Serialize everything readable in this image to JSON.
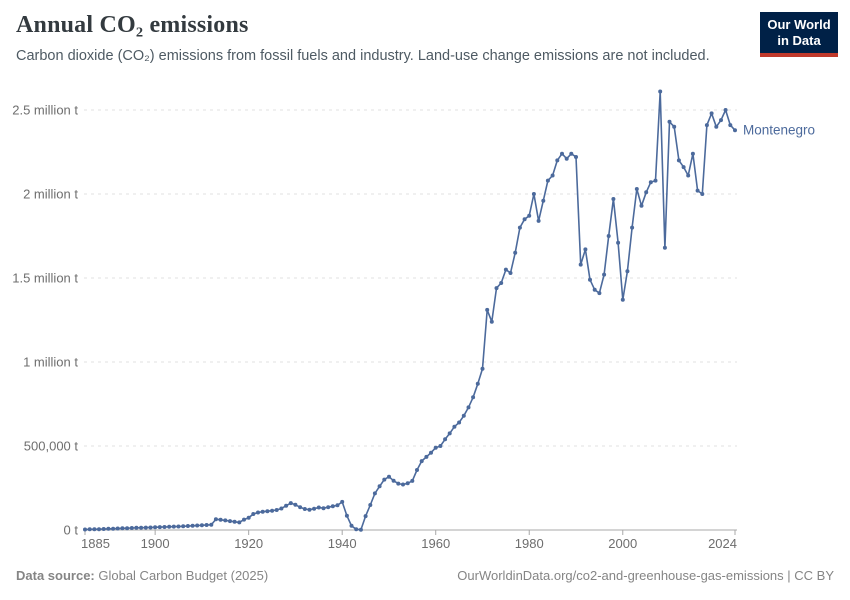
{
  "header": {
    "title": "Annual CO₂ emissions",
    "subtitle": "Carbon dioxide (CO₂) emissions from fossil fuels and industry. Land-use change emissions are not included."
  },
  "logo": {
    "line1": "Our World",
    "line2": "in Data"
  },
  "footer": {
    "datasource_label": "Data source:",
    "datasource_value": " Global Carbon Budget (2025)",
    "link": "OurWorldinData.org/co2-and-greenhouse-gas-emissions | CC BY"
  },
  "chart_data": {
    "type": "line",
    "title": "Annual CO₂ emissions",
    "entity": "Montenegro",
    "unit": "t",
    "line_color": "#4C6A9C",
    "grid": true,
    "legend_position": "end-of-line-label",
    "xlim": [
      1885,
      2024
    ],
    "ylim": [
      0,
      2600000
    ],
    "yticks": [
      {
        "value": 0,
        "label": "0 t"
      },
      {
        "value": 500000,
        "label": "500,000 t"
      },
      {
        "value": 1000000,
        "label": "1 million t"
      },
      {
        "value": 1500000,
        "label": "1.5 million t"
      },
      {
        "value": 2000000,
        "label": "2 million t"
      },
      {
        "value": 2500000,
        "label": "2.5 million t"
      }
    ],
    "xticks": [
      1885,
      1900,
      1920,
      1940,
      1960,
      1980,
      2000,
      2024
    ],
    "years": [
      1885,
      1886,
      1887,
      1888,
      1889,
      1890,
      1891,
      1892,
      1893,
      1894,
      1895,
      1896,
      1897,
      1898,
      1899,
      1900,
      1901,
      1902,
      1903,
      1904,
      1905,
      1906,
      1907,
      1908,
      1909,
      1910,
      1911,
      1912,
      1913,
      1914,
      1915,
      1916,
      1917,
      1918,
      1919,
      1920,
      1921,
      1922,
      1923,
      1924,
      1925,
      1926,
      1927,
      1928,
      1929,
      1930,
      1931,
      1932,
      1933,
      1934,
      1935,
      1936,
      1937,
      1938,
      1939,
      1940,
      1941,
      1942,
      1943,
      1944,
      1945,
      1946,
      1947,
      1948,
      1949,
      1950,
      1951,
      1952,
      1953,
      1954,
      1955,
      1956,
      1957,
      1958,
      1959,
      1960,
      1961,
      1962,
      1963,
      1964,
      1965,
      1966,
      1967,
      1968,
      1969,
      1970,
      1971,
      1972,
      1973,
      1974,
      1975,
      1976,
      1977,
      1978,
      1979,
      1980,
      1981,
      1982,
      1983,
      1984,
      1985,
      1986,
      1987,
      1988,
      1989,
      1990,
      1991,
      1992,
      1993,
      1994,
      1995,
      1996,
      1997,
      1998,
      1999,
      2000,
      2001,
      2002,
      2003,
      2004,
      2005,
      2006,
      2007,
      2008,
      2009,
      2010,
      2011,
      2012,
      2013,
      2014,
      2015,
      2016,
      2017,
      2018,
      2019,
      2020,
      2021,
      2022,
      2023,
      2024
    ],
    "values": [
      3000,
      4000,
      4000,
      5000,
      6000,
      7000,
      8000,
      9000,
      10000,
      11000,
      12000,
      13000,
      13000,
      14000,
      15000,
      16000,
      17000,
      18000,
      19000,
      20000,
      21000,
      22000,
      24000,
      25000,
      27000,
      28000,
      30000,
      31000,
      64000,
      61000,
      57000,
      53000,
      49000,
      45000,
      62000,
      73000,
      95000,
      104000,
      109000,
      112000,
      115000,
      119000,
      128000,
      144000,
      160000,
      150000,
      136000,
      125000,
      121000,
      127000,
      134000,
      130000,
      136000,
      141000,
      147000,
      167000,
      85000,
      25000,
      4000,
      2000,
      83000,
      149000,
      218000,
      260000,
      300000,
      317000,
      293000,
      276000,
      271000,
      278000,
      292000,
      357000,
      410000,
      435000,
      460000,
      490000,
      500000,
      540000,
      575000,
      615000,
      640000,
      680000,
      730000,
      790000,
      870000,
      960000,
      1310000,
      1240000,
      1440000,
      1470000,
      1550000,
      1530000,
      1650000,
      1800000,
      1850000,
      1870000,
      2000000,
      1840000,
      1960000,
      2080000,
      2110000,
      2200000,
      2240000,
      2210000,
      2240000,
      2220000,
      1580000,
      1670000,
      1490000,
      1430000,
      1410000,
      1520000,
      1750000,
      1970000,
      1710000,
      1370000,
      1540000,
      1800000,
      2030000,
      1930000,
      2010000,
      2070000,
      2080000,
      2610000,
      1680000,
      2430000,
      2400000,
      2200000,
      2160000,
      2110000,
      2240000,
      2020000,
      2000000,
      2410000,
      2480000,
      2400000,
      2440000,
      2500000,
      2410000,
      2380000
    ]
  }
}
